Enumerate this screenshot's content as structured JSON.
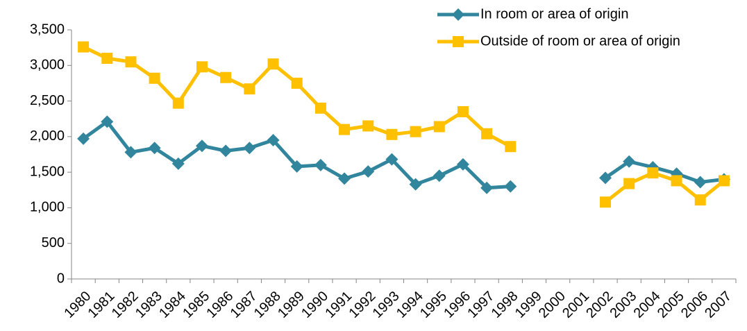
{
  "chart_data": {
    "type": "line",
    "categories": [
      "1980",
      "1981",
      "1982",
      "1983",
      "1984",
      "1985",
      "1986",
      "1987",
      "1988",
      "1989",
      "1990",
      "1991",
      "1992",
      "1993",
      "1994",
      "1995",
      "1996",
      "1997",
      "1998",
      "1999",
      "2000",
      "2001",
      "2002",
      "2003",
      "2004",
      "2005",
      "2006",
      "2007"
    ],
    "series": [
      {
        "name": "In room or area of origin",
        "color": "#31859c",
        "marker": "diamond",
        "values": [
          1970,
          2210,
          1780,
          1840,
          1620,
          1870,
          1800,
          1840,
          1950,
          1580,
          1600,
          1410,
          1510,
          1680,
          1330,
          1450,
          1610,
          1280,
          1300,
          null,
          null,
          null,
          1420,
          1650,
          1570,
          1480,
          1360,
          1400
        ]
      },
      {
        "name": "Outside of room or area of origin",
        "color": "#ffc000",
        "marker": "square",
        "values": [
          3260,
          3100,
          3050,
          2820,
          2470,
          2980,
          2830,
          2670,
          3020,
          2750,
          2400,
          2100,
          2150,
          2030,
          2070,
          2140,
          2350,
          2040,
          1860,
          null,
          null,
          null,
          1080,
          1340,
          1490,
          1380,
          1110,
          1380
        ]
      }
    ],
    "ylim": [
      0,
      3500
    ],
    "yticks": [
      0,
      500,
      {
        "value": 1000,
        "label": "1,000"
      },
      {
        "value": 1500,
        "label": "1,500"
      },
      {
        "value": 2000,
        "label": "2,000"
      },
      {
        "value": 2500,
        "label": "2,500"
      },
      {
        "value": 3000,
        "label": "3,000"
      },
      {
        "value": 3500,
        "label": "3,500"
      }
    ],
    "grid": false,
    "legend": "upper right"
  }
}
